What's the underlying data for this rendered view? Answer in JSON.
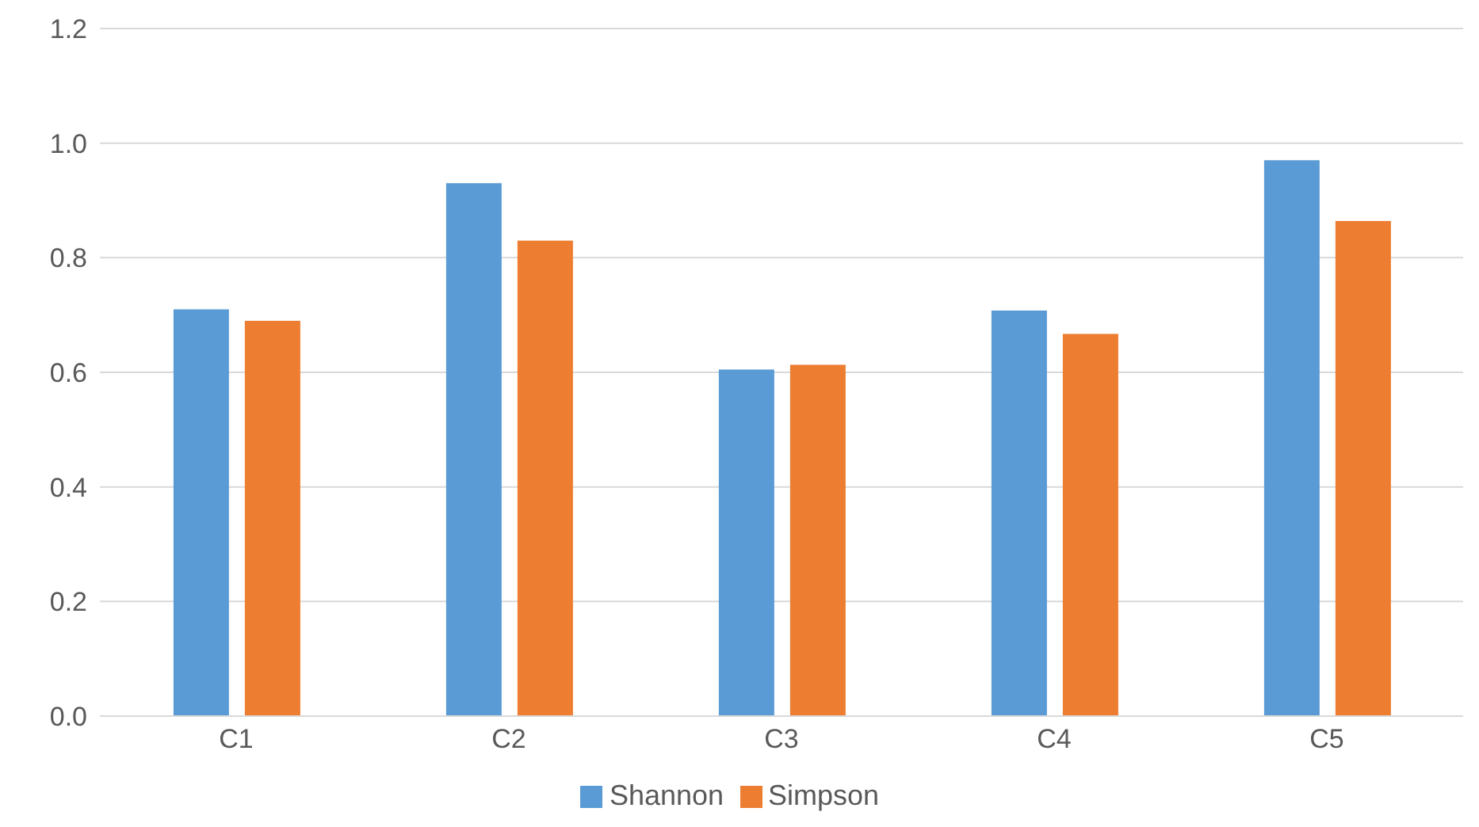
{
  "chart_data": {
    "type": "bar",
    "categories": [
      "C1",
      "C2",
      "C3",
      "C4",
      "C5"
    ],
    "series": [
      {
        "name": "Shannon",
        "color": "#5b9bd5",
        "values": [
          0.71,
          0.93,
          0.605,
          0.708,
          0.97
        ]
      },
      {
        "name": "Simpson",
        "color": "#ed7d31",
        "values": [
          0.69,
          0.83,
          0.613,
          0.667,
          0.864
        ]
      }
    ],
    "ylim": [
      0,
      1.2
    ],
    "yticks": [
      {
        "value": 0,
        "label": "0.0"
      },
      {
        "value": 0.2,
        "label": "0.2"
      },
      {
        "value": 0.4,
        "label": "0.4"
      },
      {
        "value": 0.6,
        "label": "0.6"
      },
      {
        "value": 0.8,
        "label": "0.8"
      },
      {
        "value": 1,
        "label": "1.0"
      },
      {
        "value": 1.2,
        "label": "1.2"
      }
    ],
    "grid": "y",
    "legend": "bottom"
  }
}
